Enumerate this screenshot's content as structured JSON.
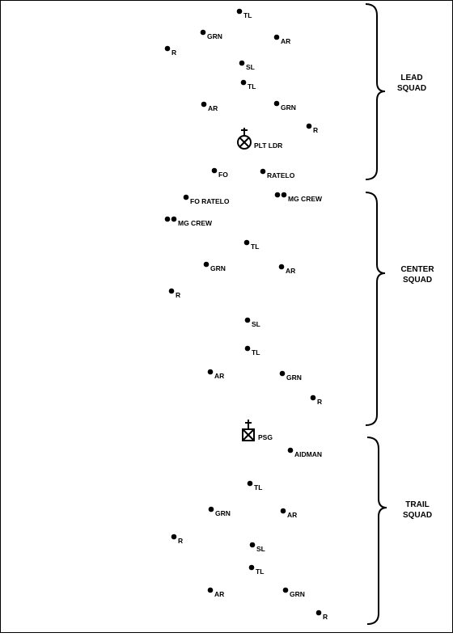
{
  "squads": [
    {
      "line1": "LEAD",
      "line2": "SQUAD"
    },
    {
      "line1": "CENTER",
      "line2": "SQUAD"
    },
    {
      "line1": "TRAIL",
      "line2": "SQUAD"
    }
  ],
  "soldiers": [
    {
      "label": "TL"
    },
    {
      "label": "GRN"
    },
    {
      "label": "AR"
    },
    {
      "label": "R"
    },
    {
      "label": "SL"
    },
    {
      "label": "TL"
    },
    {
      "label": "AR"
    },
    {
      "label": "GRN"
    },
    {
      "label": "R"
    },
    {
      "label": "FO"
    },
    {
      "label": "RATELO"
    },
    {
      "label": "FO RATELO"
    },
    {
      "label": "MG CREW"
    },
    {
      "label": "MG CREW"
    },
    {
      "label": "TL"
    },
    {
      "label": "GRN"
    },
    {
      "label": "AR"
    },
    {
      "label": "R"
    },
    {
      "label": "SL"
    },
    {
      "label": "TL"
    },
    {
      "label": "AR"
    },
    {
      "label": "GRN"
    },
    {
      "label": "R"
    },
    {
      "label": "AIDMAN"
    },
    {
      "label": "TL"
    },
    {
      "label": "GRN"
    },
    {
      "label": "AR"
    },
    {
      "label": "R"
    },
    {
      "label": "SL"
    },
    {
      "label": "TL"
    },
    {
      "label": "AR"
    },
    {
      "label": "GRN"
    },
    {
      "label": "R"
    }
  ],
  "leaders": {
    "plt_ldr": "PLT LDR",
    "psg": "PSG"
  }
}
